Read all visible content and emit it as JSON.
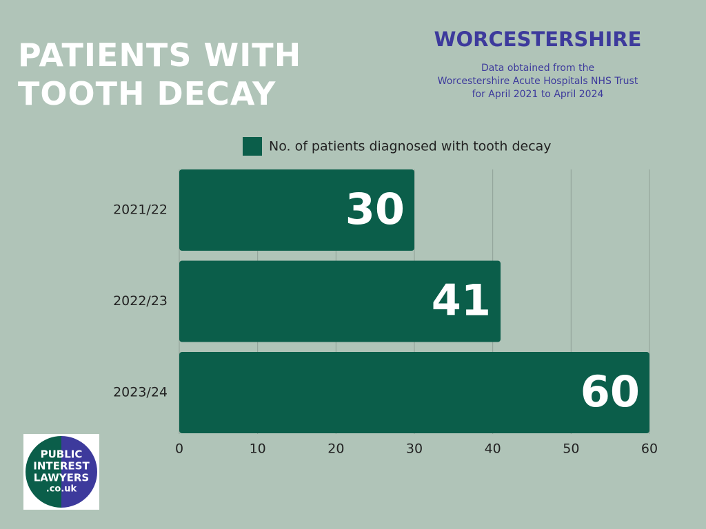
{
  "chart_data": {
    "type": "hbar",
    "title": [
      "PATIENTS WITH",
      "TOOTH DECAY"
    ],
    "region": "WORCESTERSHIRE",
    "subtitle": [
      "Data obtained from the",
      "Worcestershire Acute Hospitals NHS Trust",
      "for April 2021 to April 2024"
    ],
    "categories": [
      "2021/22",
      "2022/23",
      "2023/24"
    ],
    "series": [
      {
        "name": "No. of patients diagnosed with tooth decay",
        "color": "#0b5e4a",
        "values": [
          30,
          41,
          60
        ]
      }
    ],
    "xlim": [
      0,
      60
    ],
    "xticks": [
      0,
      10,
      20,
      30,
      40,
      50,
      60
    ],
    "grid": true
  },
  "logo": {
    "lines": [
      "PUBLIC",
      "INTEREST",
      "LAWYERS",
      ".co.uk"
    ]
  }
}
